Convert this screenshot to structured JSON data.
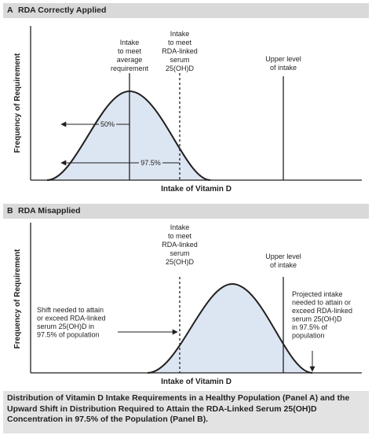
{
  "panel_a": {
    "letter": "A",
    "title": "RDA Correctly Applied",
    "ylabel": "Frequency of Requirement",
    "xlabel": "Intake of Vitamin D",
    "labels": {
      "ear": [
        "Intake",
        "to meet",
        "average",
        "requirement"
      ],
      "rda": [
        "Intake",
        "to meet",
        "RDA-linked",
        "serum",
        "25(OH)D"
      ],
      "upper": [
        "Upper level",
        "of intake"
      ],
      "pct50": "50%",
      "pct975": "97.5%"
    }
  },
  "panel_b": {
    "letter": "B",
    "title": "RDA Misapplied",
    "ylabel": "Frequency of Requirement",
    "xlabel": "Intake of Vitamin D",
    "labels": {
      "rda": [
        "Intake",
        "to meet",
        "RDA-linked",
        "serum",
        "25(OH)D"
      ],
      "upper": [
        "Upper level",
        "of intake"
      ],
      "shift": [
        "Shift needed to attain",
        "or exceed RDA-linked",
        "serum 25(OH)D in",
        "97.5% of population"
      ],
      "projected": [
        "Projected intake",
        "needed to attain or",
        "exceed RDA-linked",
        "serum 25(OH)D",
        "in 97.5% of",
        "population"
      ]
    }
  },
  "caption": "Distribution of Vitamin D Intake Requirements in a Healthy Population (Panel A) and the Upward Shift in Distribution Required to Attain the RDA-Linked Serum 25(OH)D Concentration in 97.5% of the Population (Panel B).",
  "colors": {
    "fill": "#dce6f2",
    "stroke": "#231f20",
    "header": "#d9d9d9",
    "caption_bg": "#e3e3e3"
  }
}
